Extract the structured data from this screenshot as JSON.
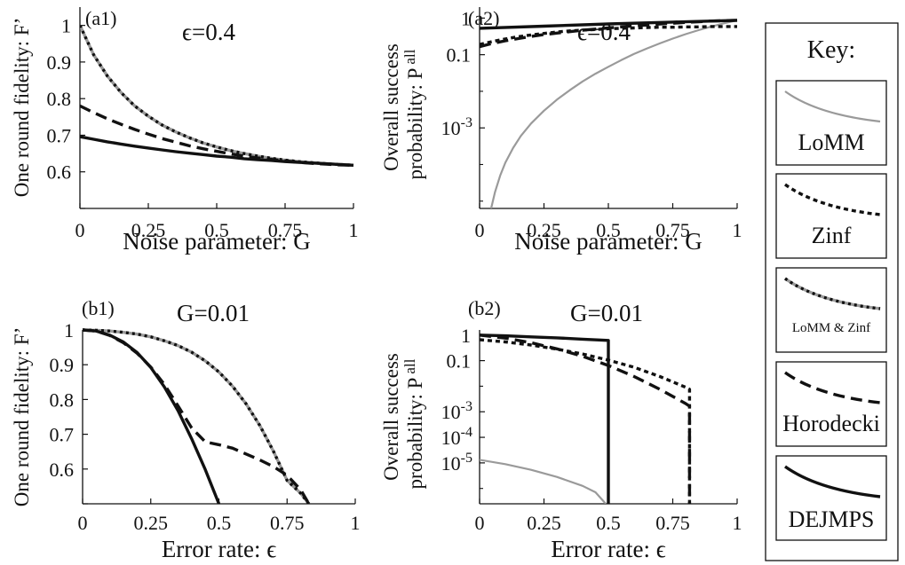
{
  "chart_data": [
    {
      "type": "line",
      "panel": "(a1)",
      "title": "ϵ=0.4",
      "xlabel": "Noise parameter: G",
      "ylabel": "One round fidelity: F’",
      "xlim": [
        0,
        1
      ],
      "ylim": [
        0.5,
        1.05
      ],
      "yscale": "linear",
      "xticks": [
        0,
        0.25,
        0.5,
        0.75,
        1
      ],
      "yticks": [
        0.6,
        0.7,
        0.8,
        0.9,
        1
      ],
      "xtick_labels": [
        "0",
        "0.25",
        "0.5",
        "0.75",
        "1"
      ],
      "ytick_labels": [
        "0.6",
        "0.7",
        "0.8",
        "0.9",
        "1"
      ],
      "series": [
        {
          "name": "LoMM & Zinf",
          "style": "lomm_zinf",
          "x": [
            0,
            0.05,
            0.1,
            0.15,
            0.2,
            0.25,
            0.3,
            0.35,
            0.4,
            0.45,
            0.5,
            0.55,
            0.6,
            0.65,
            0.7,
            0.75,
            0.8,
            0.85,
            0.9,
            0.95,
            1
          ],
          "y": [
            1.0,
            0.92,
            0.862,
            0.817,
            0.78,
            0.752,
            0.728,
            0.709,
            0.693,
            0.679,
            0.668,
            0.658,
            0.65,
            0.643,
            0.637,
            0.632,
            0.628,
            0.625,
            0.622,
            0.62,
            0.618
          ]
        },
        {
          "name": "Horodecki",
          "style": "horodecki",
          "x": [
            0,
            0.05,
            0.1,
            0.15,
            0.2,
            0.25,
            0.3,
            0.35,
            0.4,
            0.45,
            0.5,
            0.55,
            0.6,
            0.65,
            0.7,
            0.75,
            0.8,
            0.85,
            0.9,
            0.95,
            1
          ],
          "y": [
            0.78,
            0.762,
            0.745,
            0.73,
            0.716,
            0.703,
            0.691,
            0.681,
            0.671,
            0.663,
            0.656,
            0.649,
            0.643,
            0.638,
            0.634,
            0.63,
            0.626,
            0.623,
            0.621,
            0.619,
            0.618
          ]
        },
        {
          "name": "DEJMPS",
          "style": "dejmps",
          "x": [
            0,
            0.05,
            0.1,
            0.15,
            0.2,
            0.25,
            0.3,
            0.35,
            0.4,
            0.45,
            0.5,
            0.55,
            0.6,
            0.65,
            0.7,
            0.75,
            0.8,
            0.85,
            0.9,
            0.95,
            1
          ],
          "y": [
            0.696,
            0.689,
            0.682,
            0.676,
            0.67,
            0.665,
            0.66,
            0.655,
            0.651,
            0.647,
            0.643,
            0.64,
            0.636,
            0.633,
            0.631,
            0.628,
            0.626,
            0.624,
            0.622,
            0.62,
            0.618
          ]
        }
      ]
    },
    {
      "type": "line",
      "panel": "(a2)",
      "title": "ϵ=0.4",
      "xlabel": "Noise parameter: G",
      "ylabel": "Overall success probability: P",
      "ylabel_sup": "all",
      "xlim": [
        0,
        1
      ],
      "ylim": [
        -5.2,
        0.3
      ],
      "yscale": "log10",
      "xticks": [
        0,
        0.25,
        0.5,
        0.75,
        1
      ],
      "yticks": [
        0,
        -1,
        -3
      ],
      "xtick_labels": [
        "0",
        "0.25",
        "0.5",
        "0.75",
        "1"
      ],
      "ytick_labels": [
        "1",
        "0.1",
        "10",
        "-3"
      ],
      "series": [
        {
          "name": "LoMM",
          "style": "lomm",
          "x": [
            0.045,
            0.06,
            0.08,
            0.1,
            0.13,
            0.16,
            0.2,
            0.25,
            0.3,
            0.35,
            0.4,
            0.45,
            0.5,
            0.55,
            0.6,
            0.65,
            0.7,
            0.75,
            0.8,
            0.85,
            0.9,
            0.95,
            1
          ],
          "y": [
            -5.2,
            -4.75,
            -4.3,
            -3.95,
            -3.55,
            -3.22,
            -2.88,
            -2.53,
            -2.23,
            -1.97,
            -1.73,
            -1.52,
            -1.33,
            -1.15,
            -0.98,
            -0.83,
            -0.69,
            -0.56,
            -0.44,
            -0.33,
            -0.23,
            -0.14,
            -0.06
          ]
        },
        {
          "name": "Zinf",
          "style": "zinf",
          "x": [
            0,
            0.05,
            0.1,
            0.15,
            0.2,
            0.25,
            0.3,
            0.35,
            0.4,
            0.45,
            0.5,
            0.55,
            0.6,
            0.65,
            0.7,
            0.75,
            0.8,
            0.85,
            0.9,
            0.95,
            1
          ],
          "y": [
            -0.72,
            -0.64,
            -0.57,
            -0.51,
            -0.46,
            -0.42,
            -0.38,
            -0.35,
            -0.33,
            -0.31,
            -0.29,
            -0.28,
            -0.27,
            -0.26,
            -0.25,
            -0.25,
            -0.24,
            -0.24,
            -0.23,
            -0.23,
            -0.23
          ]
        },
        {
          "name": "Horodecki",
          "style": "horodecki",
          "x": [
            0,
            0.05,
            0.1,
            0.15,
            0.2,
            0.25,
            0.3,
            0.35,
            0.4,
            0.45,
            0.5,
            0.55,
            0.6,
            0.65,
            0.7,
            0.75,
            0.8,
            0.85,
            0.9,
            0.95,
            1
          ],
          "y": [
            -0.78,
            -0.69,
            -0.62,
            -0.56,
            -0.5,
            -0.45,
            -0.41,
            -0.37,
            -0.33,
            -0.3,
            -0.27,
            -0.24,
            -0.21,
            -0.19,
            -0.16,
            -0.14,
            -0.12,
            -0.1,
            -0.08,
            -0.07,
            -0.06
          ]
        },
        {
          "name": "DEJMPS",
          "style": "dejmps",
          "x": [
            0,
            0.25,
            0.5,
            0.75,
            1
          ],
          "y": [
            -0.28,
            -0.22,
            -0.16,
            -0.11,
            -0.06
          ]
        }
      ]
    },
    {
      "type": "line",
      "panel": "(b1)",
      "title": "G=0.01",
      "xlabel": "Error rate: ϵ",
      "ylabel": "One round fidelity: F’",
      "xlim": [
        0,
        1
      ],
      "ylim": [
        0.5,
        1.0
      ],
      "yscale": "linear",
      "xticks": [
        0,
        0.25,
        0.5,
        0.75,
        1
      ],
      "yticks": [
        0.6,
        0.7,
        0.8,
        0.9,
        1
      ],
      "xtick_labels": [
        "0",
        "0.25",
        "0.5",
        "0.75",
        "1"
      ],
      "ytick_labels": [
        "0.6",
        "0.7",
        "0.8",
        "0.9",
        "1"
      ],
      "series": [
        {
          "name": "LoMM & Zinf",
          "style": "lomm_zinf",
          "x": [
            0,
            0.05,
            0.1,
            0.15,
            0.2,
            0.25,
            0.3,
            0.35,
            0.4,
            0.45,
            0.5,
            0.55,
            0.6,
            0.65,
            0.7,
            0.75,
            0.8,
            0.83
          ],
          "y": [
            1.0,
            0.999,
            0.997,
            0.993,
            0.988,
            0.98,
            0.969,
            0.955,
            0.936,
            0.911,
            0.879,
            0.838,
            0.787,
            0.725,
            0.651,
            0.567,
            0.53,
            0.5
          ]
        },
        {
          "name": "Horodecki",
          "style": "horodecki",
          "x": [
            0,
            0.05,
            0.1,
            0.15,
            0.2,
            0.25,
            0.3,
            0.35,
            0.4,
            0.45,
            0.5,
            0.55,
            0.6,
            0.65,
            0.7,
            0.75,
            0.8,
            0.83
          ],
          "y": [
            1.0,
            0.997,
            0.984,
            0.963,
            0.933,
            0.893,
            0.843,
            0.782,
            0.718,
            0.678,
            0.67,
            0.66,
            0.643,
            0.626,
            0.607,
            0.582,
            0.54,
            0.5
          ]
        },
        {
          "name": "DEJMPS",
          "style": "dejmps",
          "x": [
            0,
            0.05,
            0.1,
            0.15,
            0.2,
            0.25,
            0.3,
            0.35,
            0.4,
            0.45,
            0.5
          ],
          "y": [
            1.0,
            0.997,
            0.985,
            0.965,
            0.935,
            0.892,
            0.836,
            0.768,
            0.687,
            0.598,
            0.5
          ]
        }
      ]
    },
    {
      "type": "line",
      "panel": "(b2)",
      "title": "G=0.01",
      "xlabel": "Error rate: ϵ",
      "ylabel": "Overall success probability: P",
      "ylabel_sup": "all",
      "xlim": [
        0,
        1
      ],
      "ylim": [
        -6.6,
        0.2
      ],
      "yscale": "log10",
      "xticks": [
        0,
        0.25,
        0.5,
        0.75,
        1
      ],
      "yticks": [
        0,
        -1,
        -3,
        -4,
        -5
      ],
      "xtick_labels": [
        "0",
        "0.25",
        "0.5",
        "0.75",
        "1"
      ],
      "ytick_labels": [
        "1",
        "0.1",
        "10",
        "-3",
        "10",
        "-4",
        "10",
        "-5"
      ],
      "series": [
        {
          "name": "LoMM",
          "style": "lomm",
          "x": [
            0,
            0.1,
            0.2,
            0.3,
            0.4,
            0.45,
            0.49
          ],
          "y": [
            -4.88,
            -5.05,
            -5.27,
            -5.55,
            -5.9,
            -6.15,
            -6.6
          ]
        },
        {
          "name": "Zinf",
          "style": "zinf",
          "x": [
            0,
            0.1,
            0.2,
            0.3,
            0.4,
            0.5,
            0.6,
            0.7,
            0.8,
            0.815,
            0.815
          ],
          "y": [
            -0.18,
            -0.27,
            -0.39,
            -0.55,
            -0.74,
            -0.98,
            -1.26,
            -1.62,
            -2.04,
            -2.12,
            -6.6
          ]
        },
        {
          "name": "Horodecki",
          "style": "horodecki",
          "x": [
            0,
            0.1,
            0.2,
            0.3,
            0.4,
            0.5,
            0.6,
            0.7,
            0.8,
            0.815,
            0.815
          ],
          "y": [
            0.0,
            -0.12,
            -0.3,
            -0.54,
            -0.83,
            -1.19,
            -1.62,
            -2.12,
            -2.68,
            -2.78,
            -6.6
          ]
        },
        {
          "name": "DEJMPS",
          "style": "dejmps",
          "x": [
            0,
            0.1,
            0.2,
            0.3,
            0.4,
            0.5,
            0.5
          ],
          "y": [
            0.0,
            -0.03,
            -0.07,
            -0.11,
            -0.16,
            -0.21,
            -6.6
          ]
        }
      ]
    }
  ],
  "key": {
    "title": "Key:",
    "entries": [
      {
        "label": "LoMM",
        "style": "lomm"
      },
      {
        "label": "Zinf",
        "style": "zinf"
      },
      {
        "label": "LoMM & Zinf",
        "style": "lomm_zinf"
      },
      {
        "label": "Horodecki",
        "style": "horodecki"
      },
      {
        "label": "DEJMPS",
        "style": "dejmps"
      }
    ]
  },
  "styles": {
    "lomm": {
      "color": "#9a9a9a",
      "dash": ""
    },
    "zinf": {
      "color": "#111111",
      "dash": "5,4"
    },
    "lomm_zinf": {
      "color": "#9a9a9a",
      "dash": "",
      "overlay_color": "#111111",
      "overlay_dash": "3,4"
    },
    "horodecki": {
      "color": "#111111",
      "dash": "13,7"
    },
    "dejmps": {
      "color": "#111111",
      "dash": ""
    }
  }
}
